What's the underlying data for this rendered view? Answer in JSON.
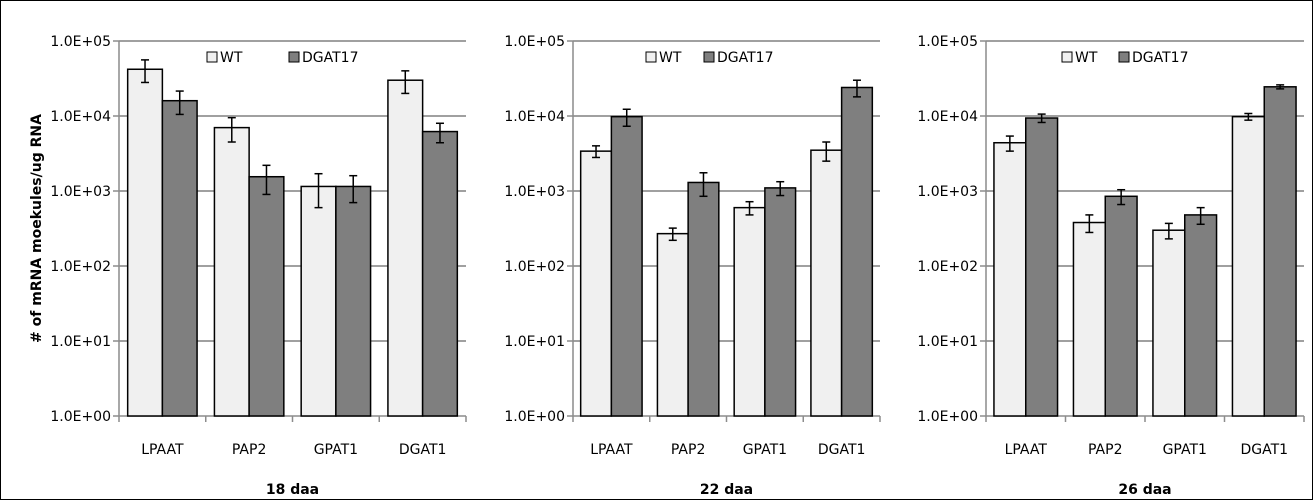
{
  "chart_data": [
    {
      "type": "bar",
      "title": "18 daa",
      "ylabel": "# of mRNA moekules/ug RNA",
      "yscale": "log",
      "ylim": [
        1,
        100000
      ],
      "yticks": [
        "1.0E+00",
        "1.0E+01",
        "1.0E+02",
        "1.0E+03",
        "1.0E+04",
        "1.0E+05"
      ],
      "grid": true,
      "legend_position": "top",
      "categories": [
        "LPAAT",
        "PAP2",
        "GPAT1",
        "DGAT1"
      ],
      "series": [
        {
          "name": "WT",
          "color": "#f0f0f0",
          "values": [
            42000,
            7000,
            1150,
            30000
          ],
          "errors": [
            14000,
            2500,
            550,
            10000
          ]
        },
        {
          "name": "DGAT17",
          "color": "#7f7f7f",
          "values": [
            16000,
            1550,
            1150,
            6200
          ],
          "errors": [
            5500,
            650,
            450,
            1800
          ]
        }
      ]
    },
    {
      "type": "bar",
      "title": "22 daa",
      "yscale": "log",
      "ylim": [
        1,
        100000
      ],
      "yticks": [
        "1.0E+00",
        "1.0E+01",
        "1.0E+02",
        "1.0E+03",
        "1.0E+04",
        "1.0E+05"
      ],
      "grid": true,
      "legend_position": "top",
      "categories": [
        "LPAAT",
        "PAP2",
        "GPAT1",
        "DGAT1"
      ],
      "series": [
        {
          "name": "WT",
          "color": "#f0f0f0",
          "values": [
            3400,
            270,
            600,
            3500
          ],
          "errors": [
            600,
            50,
            120,
            1000
          ]
        },
        {
          "name": "DGAT17",
          "color": "#7f7f7f",
          "values": [
            9800,
            1300,
            1100,
            24000
          ],
          "errors": [
            2500,
            450,
            230,
            6000
          ]
        }
      ]
    },
    {
      "type": "bar",
      "title": "26 daa",
      "yscale": "log",
      "ylim": [
        1,
        100000
      ],
      "yticks": [
        "1.0E+00",
        "1.0E+01",
        "1.0E+02",
        "1.0E+03",
        "1.0E+04",
        "1.0E+05"
      ],
      "grid": true,
      "legend_position": "top",
      "categories": [
        "LPAAT",
        "PAP2",
        "GPAT1",
        "DGAT1"
      ],
      "series": [
        {
          "name": "WT",
          "color": "#f0f0f0",
          "values": [
            4400,
            380,
            300,
            9800
          ],
          "errors": [
            1000,
            100,
            70,
            1000
          ]
        },
        {
          "name": "DGAT17",
          "color": "#7f7f7f",
          "values": [
            9400,
            850,
            480,
            24500
          ],
          "errors": [
            1200,
            190,
            120,
            1500
          ]
        }
      ]
    }
  ]
}
